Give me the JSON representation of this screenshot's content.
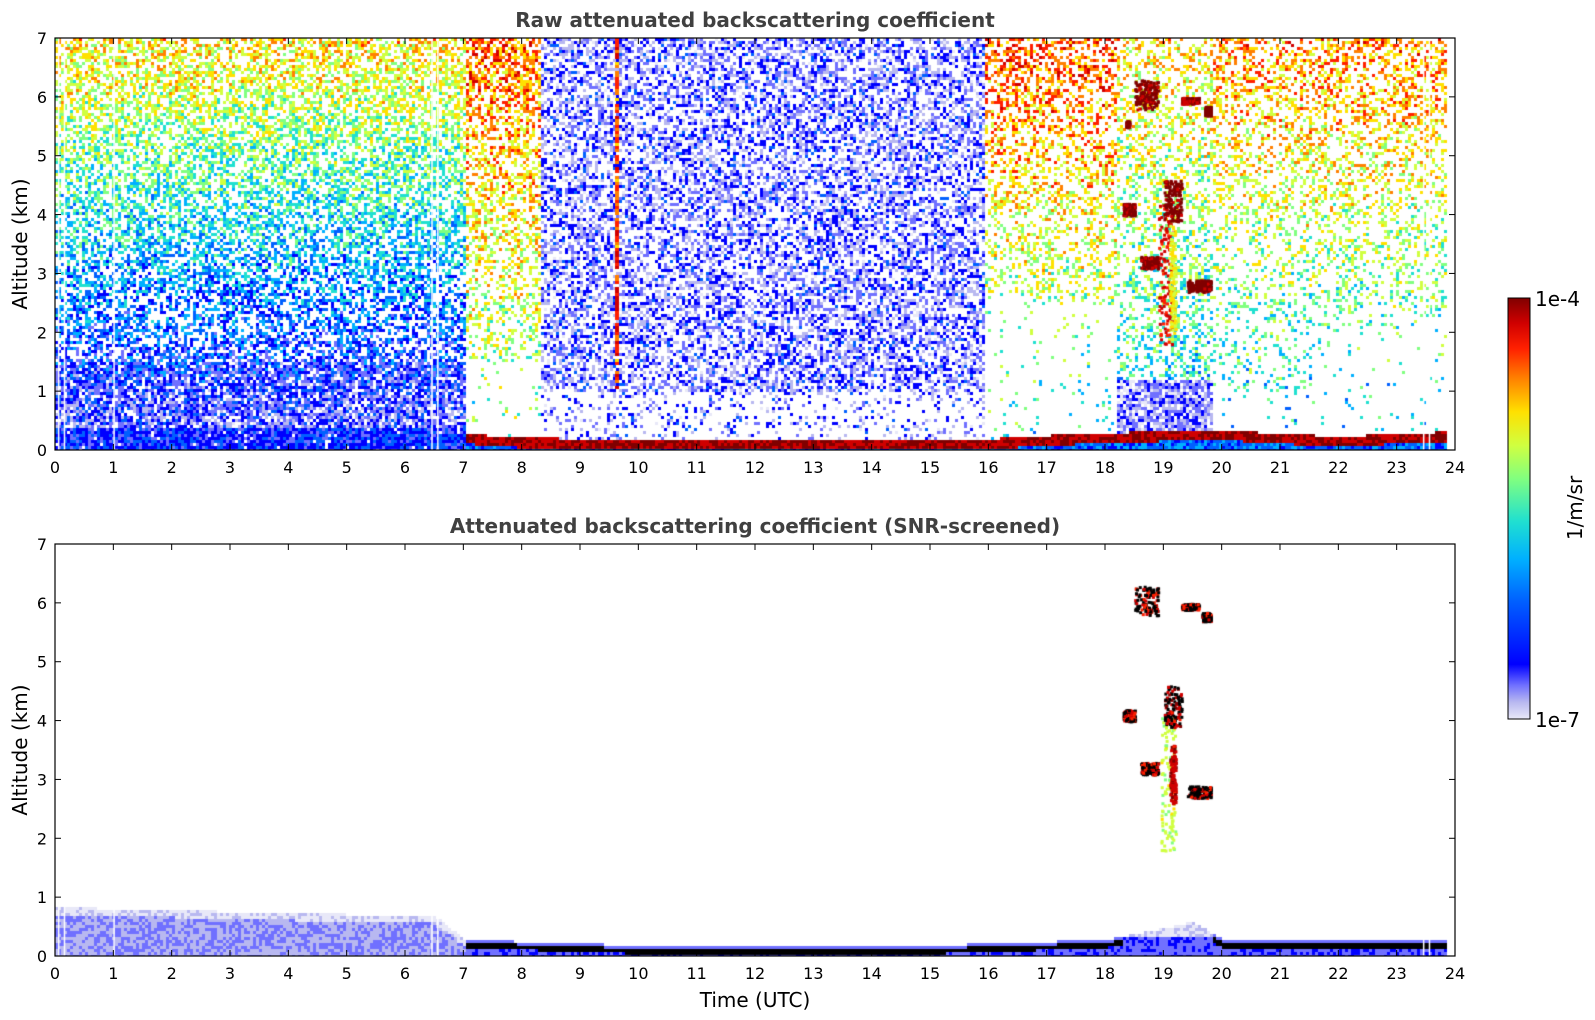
{
  "chart_data": [
    {
      "type": "heatmap",
      "title": "Raw attenuated backscattering coefficient",
      "xlabel": "",
      "ylabel": "Altitude (km)",
      "xlim": [
        0,
        24
      ],
      "ylim": [
        0,
        7
      ],
      "xticks": [
        0,
        1,
        2,
        3,
        4,
        5,
        6,
        7,
        8,
        9,
        10,
        11,
        12,
        13,
        14,
        15,
        16,
        17,
        18,
        19,
        20,
        21,
        22,
        23,
        24
      ],
      "yticks": [
        0,
        1,
        2,
        3,
        4,
        5,
        6,
        7
      ],
      "features": {
        "boundary_layer_top_km": [
          [
            7.0,
            0.25
          ],
          [
            8,
            0.18
          ],
          [
            10,
            0.15
          ],
          [
            12,
            0.14
          ],
          [
            14,
            0.14
          ],
          [
            16,
            0.16
          ],
          [
            17,
            0.22
          ],
          [
            18,
            0.26
          ],
          [
            19.8,
            0.32
          ],
          [
            21,
            0.25
          ],
          [
            22,
            0.2
          ],
          [
            23,
            0.25
          ],
          [
            23.8,
            0.28
          ]
        ],
        "noise_background_high_hours": [
          [
            0,
            7.5
          ],
          [
            15.9,
            23.8
          ]
        ],
        "noise_background_low_hours": [
          [
            8.3,
            15.9
          ]
        ],
        "cloud_hours": [
          18.2,
          19.8
        ],
        "cloud_altitude_km": [
          2.0,
          6.3
        ]
      }
    },
    {
      "type": "heatmap",
      "title": "Attenuated backscattering coefficient (SNR-screened)",
      "xlabel": "Time (UTC)",
      "ylabel": "Altitude (km)",
      "xlim": [
        0,
        24
      ],
      "ylim": [
        0,
        7
      ],
      "xticks": [
        0,
        1,
        2,
        3,
        4,
        5,
        6,
        7,
        8,
        9,
        10,
        11,
        12,
        13,
        14,
        15,
        16,
        17,
        18,
        19,
        20,
        21,
        22,
        23,
        24
      ],
      "yticks": [
        0,
        1,
        2,
        3,
        4,
        5,
        6,
        7
      ],
      "features": {
        "aerosol_layer_top_km": [
          [
            0,
            0.85
          ],
          [
            2,
            0.8
          ],
          [
            4,
            0.75
          ],
          [
            6.5,
            0.7
          ],
          [
            7,
            0.3
          ],
          [
            10,
            0.2
          ],
          [
            15,
            0.2
          ],
          [
            18,
            0.3
          ],
          [
            19.5,
            0.6
          ],
          [
            20,
            0.3
          ],
          [
            23.8,
            0.3
          ]
        ],
        "cloud_hours": [
          18.2,
          19.8
        ],
        "cloud_altitude_km": [
          1.8,
          6.3
        ]
      }
    }
  ],
  "colorbar": {
    "label": "1/m/sr",
    "max_label": "1e-4",
    "min_label": "1e-7",
    "scale": "log",
    "colors": [
      "#e8e8f8",
      "#b8b8f0",
      "#7070ff",
      "#0000ff",
      "#0060ff",
      "#00b0ff",
      "#20e0d0",
      "#80ff80",
      "#d0ff40",
      "#ffe000",
      "#ff8000",
      "#ff2000",
      "#d00000",
      "#800000"
    ]
  }
}
